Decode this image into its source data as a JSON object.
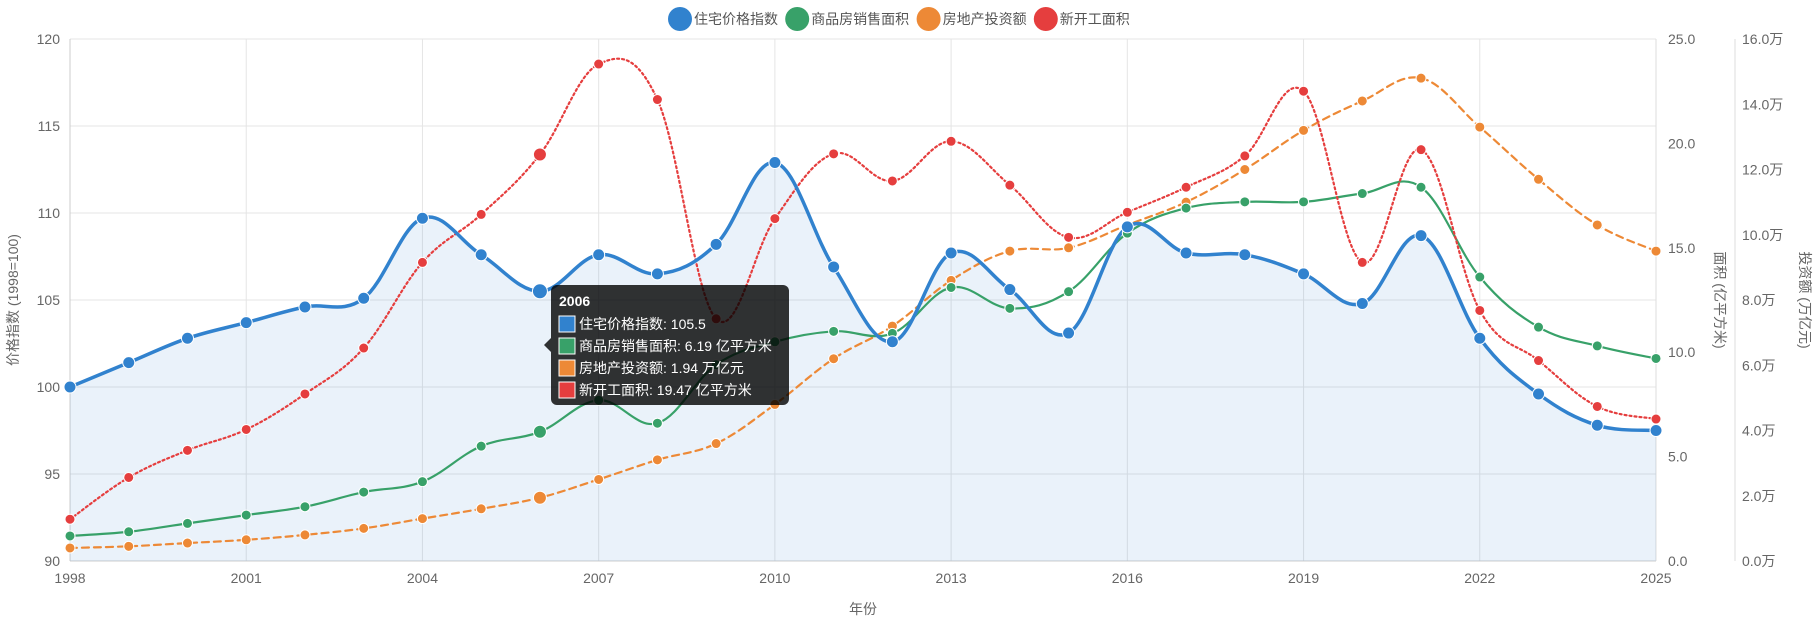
{
  "chart_data": {
    "type": "line",
    "x": [
      1998,
      1999,
      2000,
      2001,
      2002,
      2003,
      2004,
      2005,
      2006,
      2007,
      2008,
      2009,
      2010,
      2011,
      2012,
      2013,
      2014,
      2015,
      2016,
      2017,
      2018,
      2019,
      2020,
      2021,
      2022,
      2023,
      2024,
      2025
    ],
    "x_ticks": [
      "1998",
      "2001",
      "2004",
      "2007",
      "2010",
      "2013",
      "2016",
      "2019",
      "2022",
      "2025"
    ],
    "xlabel": "年份",
    "y_left": {
      "label": "价格指数 (1998=100)",
      "min": 90,
      "max": 120,
      "ticks": [
        "90",
        "95",
        "100",
        "105",
        "110",
        "115",
        "120"
      ]
    },
    "y_right1": {
      "label": "面积 (亿平方米)",
      "min": 0,
      "max": 25,
      "ticks": [
        "0.0",
        "5.0",
        "10.0",
        "15.0",
        "20.0",
        "25.0"
      ]
    },
    "y_right2": {
      "label": "投资额 (万亿元)",
      "min": 0,
      "max": 16,
      "ticks": [
        "0.0万",
        "2.0万",
        "4.0万",
        "6.0万",
        "8.0万",
        "10.0万",
        "12.0万",
        "14.0万",
        "16.0万"
      ]
    },
    "grid": true,
    "legend_position": "top-center",
    "series": [
      {
        "name": "住宅价格指数",
        "axis": "y_left",
        "color": "#3182ce",
        "style": "solid-filled",
        "values": [
          100,
          101.4,
          102.8,
          103.7,
          104.6,
          105.1,
          109.7,
          107.6,
          105.5,
          107.6,
          106.5,
          108.2,
          112.9,
          106.9,
          102.6,
          107.7,
          105.6,
          103.1,
          109.2,
          107.7,
          107.6,
          106.5,
          104.8,
          108.7,
          102.8,
          99.6,
          97.8,
          97.5
        ]
      },
      {
        "name": "商品房销售面积",
        "axis": "y_right1",
        "color": "#38a169",
        "style": "solid",
        "values": [
          1.2,
          1.4,
          1.8,
          2.2,
          2.6,
          3.3,
          3.8,
          5.5,
          6.19,
          7.7,
          6.6,
          9.4,
          10.5,
          11.0,
          10.9,
          13.1,
          12.1,
          12.9,
          15.7,
          16.9,
          17.2,
          17.2,
          17.6,
          17.9,
          13.6,
          11.2,
          10.3,
          9.7
        ]
      },
      {
        "name": "房地产投资额",
        "axis": "y_right2",
        "color": "#ed8936",
        "style": "dashed",
        "values": [
          0.4,
          0.45,
          0.55,
          0.65,
          0.8,
          1.0,
          1.3,
          1.6,
          1.94,
          2.5,
          3.1,
          3.6,
          4.8,
          6.2,
          7.2,
          8.6,
          9.5,
          9.6,
          10.3,
          11.0,
          12.0,
          13.2,
          14.1,
          14.8,
          13.3,
          11.7,
          10.3,
          9.5
        ]
      },
      {
        "name": "新开工面积",
        "axis": "y_right1",
        "color": "#e53e3e",
        "style": "dotted",
        "values": [
          2.0,
          4.0,
          5.3,
          6.3,
          8.0,
          10.2,
          14.3,
          16.6,
          19.47,
          23.8,
          22.1,
          11.6,
          16.4,
          19.5,
          18.2,
          20.1,
          18.0,
          15.5,
          16.7,
          17.9,
          19.4,
          22.5,
          14.3,
          19.7,
          12.0,
          9.6,
          7.4,
          6.8
        ]
      }
    ],
    "tooltip": {
      "title": "2006",
      "lines": [
        {
          "text": "住宅价格指数: 105.5",
          "color": "#3182ce"
        },
        {
          "text": "商品房销售面积: 6.19 亿平方米",
          "color": "#38a169"
        },
        {
          "text": "房地产投资额: 1.94 万亿元",
          "color": "#ed8936"
        },
        {
          "text": "新开工面积: 19.47 亿平方米",
          "color": "#e53e3e"
        }
      ]
    },
    "highlight_index": 8
  }
}
